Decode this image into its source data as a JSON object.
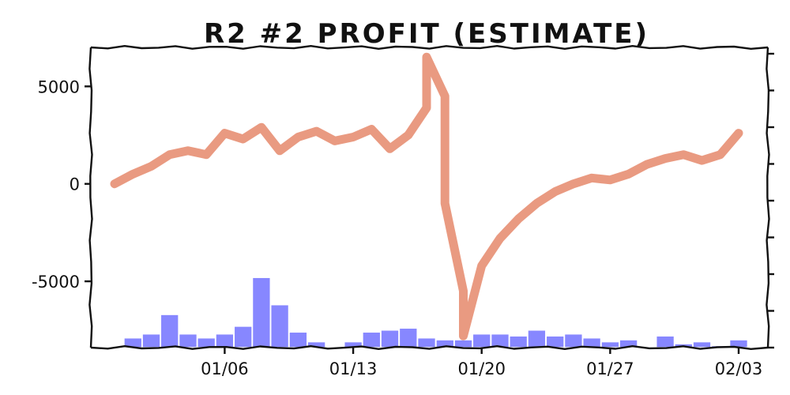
{
  "chart_data": {
    "type": "line",
    "title": "R2 #2 PROFIT (ESTIMATE)",
    "xlabel": "",
    "ylabel": "",
    "xlim": [
      "12/31",
      "02/03"
    ],
    "ylim": [
      -8400,
      7000
    ],
    "y_ticks": [
      -5000,
      0,
      5000
    ],
    "x_ticks": [
      "01/06",
      "01/13",
      "01/20",
      "01/27",
      "02/03"
    ],
    "grid": false,
    "colors": {
      "profit": "#e8957a",
      "volume": "#7b7bff",
      "axis": "#111111"
    },
    "series": [
      {
        "name": "",
        "kind": "line",
        "points": [
          [
            "12/31",
            0
          ],
          [
            "01/01",
            500
          ],
          [
            "01/02",
            900
          ],
          [
            "01/03",
            1500
          ],
          [
            "01/04",
            1700
          ],
          [
            "01/05",
            1500
          ],
          [
            "01/06",
            2600
          ],
          [
            "01/07",
            2300
          ],
          [
            "01/08",
            2900
          ],
          [
            "01/09",
            1700
          ],
          [
            "01/10",
            2400
          ],
          [
            "01/11",
            2700
          ],
          [
            "01/12",
            2200
          ],
          [
            "01/13",
            2400
          ],
          [
            "01/14",
            2800
          ],
          [
            "01/15",
            1800
          ],
          [
            "01/16",
            2500
          ],
          [
            "01/17",
            3900
          ],
          [
            "01/17",
            6500
          ],
          [
            "01/18",
            4500
          ],
          [
            "01/18",
            -1000
          ],
          [
            "01/19",
            -5500
          ],
          [
            "01/19",
            -7800
          ],
          [
            "01/20",
            -4200
          ],
          [
            "01/21",
            -2800
          ],
          [
            "01/22",
            -1800
          ],
          [
            "01/23",
            -1000
          ],
          [
            "01/24",
            -400
          ],
          [
            "01/25",
            0
          ],
          [
            "01/26",
            300
          ],
          [
            "01/27",
            200
          ],
          [
            "01/28",
            500
          ],
          [
            "01/29",
            1000
          ],
          [
            "01/30",
            1300
          ],
          [
            "01/31",
            1500
          ],
          [
            "02/01",
            1200
          ],
          [
            "02/02",
            1500
          ],
          [
            "02/03",
            2600
          ]
        ]
      },
      {
        "name": "",
        "kind": "bar",
        "points": [
          [
            "01/01",
            -7900
          ],
          [
            "01/02",
            -7700
          ],
          [
            "01/03",
            -6700
          ],
          [
            "01/04",
            -7700
          ],
          [
            "01/05",
            -7900
          ],
          [
            "01/06",
            -7700
          ],
          [
            "01/07",
            -7300
          ],
          [
            "01/08",
            -4800
          ],
          [
            "01/09",
            -6200
          ],
          [
            "01/10",
            -7600
          ],
          [
            "01/11",
            -8100
          ],
          [
            "01/13",
            -8100
          ],
          [
            "01/14",
            -7600
          ],
          [
            "01/15",
            -7500
          ],
          [
            "01/16",
            -7400
          ],
          [
            "01/17",
            -7900
          ],
          [
            "01/18",
            -8000
          ],
          [
            "01/19",
            -8000
          ],
          [
            "01/20",
            -7700
          ],
          [
            "01/21",
            -7700
          ],
          [
            "01/22",
            -7800
          ],
          [
            "01/23",
            -7500
          ],
          [
            "01/24",
            -7800
          ],
          [
            "01/25",
            -7700
          ],
          [
            "01/26",
            -7900
          ],
          [
            "01/27",
            -8100
          ],
          [
            "01/28",
            -8000
          ],
          [
            "01/30",
            -7800
          ],
          [
            "01/31",
            -8200
          ],
          [
            "02/01",
            -8100
          ],
          [
            "02/02",
            -8300
          ],
          [
            "02/03",
            -8000
          ]
        ]
      }
    ]
  }
}
